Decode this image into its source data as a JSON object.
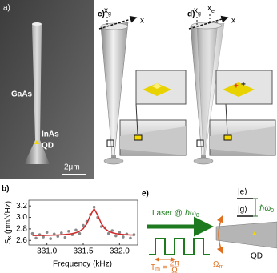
{
  "panels": {
    "a": {
      "label": "a)",
      "material_top": "GaAs",
      "material_bottom": "InAs",
      "dot": "QD",
      "scale": "2μm"
    },
    "c": {
      "label": "c)",
      "position": {
        "main": "x",
        "sub": "g"
      },
      "axis": "x"
    },
    "d": {
      "label": "d)",
      "position_g": {
        "main": "x",
        "sub": "g"
      },
      "position_e": {
        "main": "x",
        "sub": "e"
      },
      "axis": "x"
    },
    "b": {
      "label": "b)"
    },
    "e": {
      "label": "e)",
      "laser": {
        "main": "Laser @ ℏω",
        "sub": "0"
      },
      "period": {
        "main": "T",
        "sub": "m",
        "eq": " = ",
        "num": "2π",
        "den": "Ω"
      },
      "excited": "|e⟩",
      "ground": "|g⟩",
      "splitting": {
        "main": "ℏω",
        "sub": "0"
      },
      "dot": "QD",
      "mech": {
        "main": "Ω",
        "sub": "m"
      }
    }
  },
  "chart_data": {
    "type": "scatter",
    "y_label": {
      "main": "S",
      "sub": "x",
      "rest": " (pm/√Hz)"
    },
    "x_label": "Frequency (kHz)",
    "x": [
      330.8,
      330.85,
      330.9,
      330.95,
      331.0,
      331.05,
      331.1,
      331.15,
      331.2,
      331.25,
      331.3,
      331.35,
      331.4,
      331.45,
      331.5,
      331.55,
      331.6,
      331.65,
      331.7,
      331.75,
      331.8,
      331.85,
      331.9,
      331.95,
      332.0,
      332.05,
      332.1,
      332.15,
      332.2
    ],
    "series": [
      {
        "color": "#8a8a8a",
        "mode": "markers",
        "values": [
          2.72,
          2.64,
          2.7,
          2.66,
          2.74,
          2.63,
          2.71,
          2.67,
          2.73,
          2.65,
          2.76,
          2.7,
          2.78,
          2.72,
          2.86,
          2.93,
          3.05,
          3.18,
          3.0,
          2.84,
          2.82,
          2.72,
          2.77,
          2.68,
          2.74,
          2.66,
          2.71,
          2.64,
          2.7
        ]
      },
      {
        "color": "#d02828",
        "mode": "lines",
        "values": [
          2.685,
          2.686,
          2.687,
          2.688,
          2.689,
          2.69,
          2.692,
          2.695,
          2.698,
          2.703,
          2.709,
          2.719,
          2.734,
          2.759,
          2.804,
          2.891,
          3.039,
          3.15,
          3.039,
          2.891,
          2.804,
          2.759,
          2.734,
          2.719,
          2.709,
          2.703,
          2.698,
          2.695,
          2.692
        ]
      }
    ],
    "xlim": [
      330.75,
      332.25
    ],
    "xticks": [
      {
        "value": 331,
        "label": "331.0"
      },
      {
        "value": 331.5,
        "label": "331.5"
      },
      {
        "value": 332,
        "label": "332.0"
      }
    ],
    "ylim": [
      2.52,
      3.3
    ],
    "yticks": [
      2.6,
      2.8,
      {
        "value": 3,
        "label": "3.0"
      },
      3.2
    ]
  }
}
